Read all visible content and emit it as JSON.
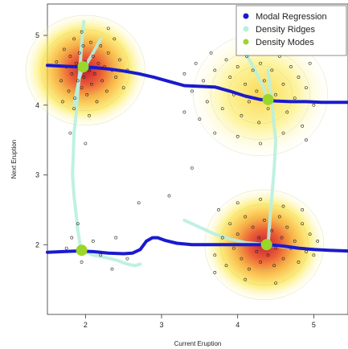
{
  "chart_data": {
    "type": "scatter",
    "title": "",
    "xlabel": "Current Eruption",
    "ylabel": "Next Eruption",
    "xlim": [
      1.5,
      5.45
    ],
    "ylim": [
      1.0,
      5.45
    ],
    "xticks": [
      2,
      3,
      4,
      5
    ],
    "yticks": [
      2,
      3,
      4,
      5
    ],
    "grid": false,
    "legend": {
      "placement": "top-right",
      "entries": [
        {
          "label": "Modal Regression",
          "color": "#1a1acc",
          "marker": "dot"
        },
        {
          "label": "Density Ridges",
          "color": "#b8f0e0",
          "marker": "dot"
        },
        {
          "label": "Density Modes",
          "color": "#9bd62a",
          "marker": "dot"
        }
      ]
    },
    "density_clusters": [
      {
        "x": 2.0,
        "y": 4.5,
        "peak": 1.0
      },
      {
        "x": 4.35,
        "y": 2.0,
        "peak": 1.0
      },
      {
        "x": 4.3,
        "y": 4.15,
        "peak": 0.45
      }
    ],
    "modes": [
      {
        "x": 1.97,
        "y": 4.55
      },
      {
        "x": 4.4,
        "y": 4.08
      },
      {
        "x": 1.95,
        "y": 1.92
      },
      {
        "x": 4.38,
        "y": 2.0
      }
    ],
    "modal_regression": [
      {
        "name": "upper",
        "x": [
          1.5,
          1.7,
          1.9,
          2.1,
          2.3,
          2.5,
          2.7,
          2.9,
          3.1,
          3.3,
          3.5,
          3.7,
          3.9,
          4.1,
          4.3,
          4.5,
          4.7,
          4.9,
          5.1,
          5.3,
          5.45
        ],
        "y": [
          4.57,
          4.56,
          4.55,
          4.54,
          4.52,
          4.49,
          4.45,
          4.4,
          4.34,
          4.28,
          4.27,
          4.26,
          4.2,
          4.13,
          4.08,
          4.06,
          4.05,
          4.05,
          4.04,
          4.04,
          4.04
        ]
      },
      {
        "name": "lower",
        "x": [
          1.5,
          1.7,
          1.9,
          2.1,
          2.3,
          2.5,
          2.62,
          2.72,
          2.8,
          2.88,
          2.95,
          3.05,
          3.2,
          3.4,
          3.6,
          3.8,
          4.0,
          4.2,
          4.4,
          4.6,
          4.8,
          5.0,
          5.2,
          5.45
        ],
        "y": [
          1.89,
          1.9,
          1.91,
          1.9,
          1.88,
          1.87,
          1.88,
          1.93,
          2.05,
          2.1,
          2.1,
          2.06,
          2.02,
          2.0,
          2.0,
          2.0,
          2.0,
          2.0,
          2.0,
          1.98,
          1.95,
          1.93,
          1.92,
          1.91
        ]
      }
    ],
    "density_ridges": [
      {
        "name": "left-vertical",
        "x": [
          1.98,
          1.95,
          1.93,
          1.9,
          1.88,
          1.85,
          1.84,
          1.83,
          1.85,
          1.88,
          1.9,
          1.93,
          1.95
        ],
        "y": [
          5.2,
          4.9,
          4.55,
          4.2,
          3.9,
          3.6,
          3.3,
          3.0,
          2.7,
          2.4,
          2.2,
          2.0,
          1.92
        ]
      },
      {
        "name": "left-branch",
        "x": [
          2.2,
          2.1,
          2.02,
          1.97,
          1.92,
          1.85
        ],
        "y": [
          4.95,
          4.75,
          4.6,
          4.55,
          4.4,
          4.0
        ]
      },
      {
        "name": "lower-left",
        "x": [
          1.95,
          2.1,
          2.25,
          2.4,
          2.55,
          2.65,
          2.72
        ],
        "y": [
          1.92,
          1.85,
          1.82,
          1.78,
          1.72,
          1.7,
          1.72
        ]
      },
      {
        "name": "right-vertical",
        "x": [
          4.4,
          4.42,
          4.45,
          4.47,
          4.5,
          4.48,
          4.45,
          4.42,
          4.4
        ],
        "y": [
          4.5,
          4.3,
          4.08,
          3.8,
          3.5,
          3.1,
          2.7,
          2.3,
          2.0
        ]
      },
      {
        "name": "right-branch",
        "x": [
          4.4,
          4.32,
          4.25,
          4.18,
          4.1
        ],
        "y": [
          4.08,
          4.3,
          4.45,
          4.6,
          4.75
        ]
      },
      {
        "name": "lower-right",
        "x": [
          3.3,
          3.5,
          3.7,
          3.9,
          4.1,
          4.38,
          4.6,
          4.8,
          5.0
        ],
        "y": [
          2.35,
          2.25,
          2.15,
          2.08,
          2.03,
          2.0,
          1.97,
          1.95,
          1.94
        ]
      }
    ],
    "observations": [
      {
        "x": 1.62,
        "y": 4.62
      },
      {
        "x": 1.68,
        "y": 4.35
      },
      {
        "x": 1.72,
        "y": 4.8
      },
      {
        "x": 1.75,
        "y": 4.55
      },
      {
        "x": 1.78,
        "y": 4.2
      },
      {
        "x": 1.8,
        "y": 4.7
      },
      {
        "x": 1.82,
        "y": 4.45
      },
      {
        "x": 1.85,
        "y": 4.95
      },
      {
        "x": 1.86,
        "y": 4.1
      },
      {
        "x": 1.88,
        "y": 4.6
      },
      {
        "x": 1.9,
        "y": 4.35
      },
      {
        "x": 1.92,
        "y": 4.75
      },
      {
        "x": 1.95,
        "y": 4.25
      },
      {
        "x": 1.97,
        "y": 4.85
      },
      {
        "x": 1.98,
        "y": 4.4
      },
      {
        "x": 2.0,
        "y": 4.62
      },
      {
        "x": 2.02,
        "y": 4.15
      },
      {
        "x": 2.05,
        "y": 4.5
      },
      {
        "x": 2.07,
        "y": 4.9
      },
      {
        "x": 2.08,
        "y": 4.3
      },
      {
        "x": 2.1,
        "y": 4.7
      },
      {
        "x": 2.12,
        "y": 4.45
      },
      {
        "x": 2.15,
        "y": 4.05
      },
      {
        "x": 2.17,
        "y": 4.6
      },
      {
        "x": 2.2,
        "y": 4.85
      },
      {
        "x": 2.22,
        "y": 4.35
      },
      {
        "x": 2.25,
        "y": 4.55
      },
      {
        "x": 2.28,
        "y": 4.2
      },
      {
        "x": 2.3,
        "y": 4.75
      },
      {
        "x": 2.35,
        "y": 4.5
      },
      {
        "x": 2.38,
        "y": 4.95
      },
      {
        "x": 2.4,
        "y": 4.4
      },
      {
        "x": 2.45,
        "y": 4.65
      },
      {
        "x": 2.5,
        "y": 4.25
      },
      {
        "x": 2.55,
        "y": 4.5
      },
      {
        "x": 1.95,
        "y": 5.05
      },
      {
        "x": 2.3,
        "y": 5.1
      },
      {
        "x": 1.85,
        "y": 3.95
      },
      {
        "x": 2.05,
        "y": 3.85
      },
      {
        "x": 1.8,
        "y": 3.6
      },
      {
        "x": 2.0,
        "y": 3.45
      },
      {
        "x": 1.7,
        "y": 4.05
      },
      {
        "x": 3.3,
        "y": 4.45
      },
      {
        "x": 3.4,
        "y": 4.2
      },
      {
        "x": 3.45,
        "y": 4.6
      },
      {
        "x": 3.55,
        "y": 4.35
      },
      {
        "x": 3.6,
        "y": 4.05
      },
      {
        "x": 3.65,
        "y": 4.75
      },
      {
        "x": 3.7,
        "y": 4.5
      },
      {
        "x": 3.75,
        "y": 4.25
      },
      {
        "x": 3.8,
        "y": 3.95
      },
      {
        "x": 3.85,
        "y": 4.65
      },
      {
        "x": 3.9,
        "y": 4.4
      },
      {
        "x": 3.95,
        "y": 4.15
      },
      {
        "x": 4.0,
        "y": 4.55
      },
      {
        "x": 4.05,
        "y": 3.85
      },
      {
        "x": 4.1,
        "y": 4.3
      },
      {
        "x": 4.12,
        "y": 4.7
      },
      {
        "x": 4.15,
        "y": 4.05
      },
      {
        "x": 4.2,
        "y": 4.5
      },
      {
        "x": 4.25,
        "y": 4.2
      },
      {
        "x": 4.28,
        "y": 3.75
      },
      {
        "x": 4.3,
        "y": 4.6
      },
      {
        "x": 4.35,
        "y": 4.35
      },
      {
        "x": 4.4,
        "y": 3.95
      },
      {
        "x": 4.45,
        "y": 4.5
      },
      {
        "x": 4.5,
        "y": 4.15
      },
      {
        "x": 4.55,
        "y": 4.7
      },
      {
        "x": 4.6,
        "y": 4.3
      },
      {
        "x": 4.65,
        "y": 3.9
      },
      {
        "x": 4.7,
        "y": 4.55
      },
      {
        "x": 4.75,
        "y": 4.1
      },
      {
        "x": 4.8,
        "y": 4.4
      },
      {
        "x": 4.85,
        "y": 3.7
      },
      {
        "x": 4.9,
        "y": 4.25
      },
      {
        "x": 4.95,
        "y": 4.6
      },
      {
        "x": 5.0,
        "y": 4.0
      },
      {
        "x": 3.5,
        "y": 3.8
      },
      {
        "x": 3.7,
        "y": 3.6
      },
      {
        "x": 4.0,
        "y": 3.55
      },
      {
        "x": 4.3,
        "y": 3.45
      },
      {
        "x": 4.6,
        "y": 3.6
      },
      {
        "x": 4.9,
        "y": 3.5
      },
      {
        "x": 3.3,
        "y": 3.9
      },
      {
        "x": 3.7,
        "y": 1.85
      },
      {
        "x": 3.8,
        "y": 2.1
      },
      {
        "x": 3.85,
        "y": 1.7
      },
      {
        "x": 3.9,
        "y": 2.3
      },
      {
        "x": 3.95,
        "y": 1.95
      },
      {
        "x": 4.0,
        "y": 2.15
      },
      {
        "x": 4.05,
        "y": 1.8
      },
      {
        "x": 4.1,
        "y": 2.4
      },
      {
        "x": 4.12,
        "y": 2.0
      },
      {
        "x": 4.15,
        "y": 1.65
      },
      {
        "x": 4.2,
        "y": 2.25
      },
      {
        "x": 4.25,
        "y": 1.9
      },
      {
        "x": 4.28,
        "y": 2.1
      },
      {
        "x": 4.3,
        "y": 1.75
      },
      {
        "x": 4.35,
        "y": 2.35
      },
      {
        "x": 4.38,
        "y": 2.05
      },
      {
        "x": 4.4,
        "y": 1.85
      },
      {
        "x": 4.45,
        "y": 2.2
      },
      {
        "x": 4.48,
        "y": 1.7
      },
      {
        "x": 4.5,
        "y": 1.95
      },
      {
        "x": 4.55,
        "y": 2.4
      },
      {
        "x": 4.58,
        "y": 2.1
      },
      {
        "x": 4.6,
        "y": 1.8
      },
      {
        "x": 4.65,
        "y": 2.25
      },
      {
        "x": 4.7,
        "y": 1.95
      },
      {
        "x": 4.75,
        "y": 2.05
      },
      {
        "x": 4.8,
        "y": 1.75
      },
      {
        "x": 4.85,
        "y": 2.3
      },
      {
        "x": 4.9,
        "y": 1.9
      },
      {
        "x": 4.95,
        "y": 2.15
      },
      {
        "x": 5.0,
        "y": 1.85
      },
      {
        "x": 5.05,
        "y": 2.05
      },
      {
        "x": 3.75,
        "y": 2.5
      },
      {
        "x": 4.0,
        "y": 2.6
      },
      {
        "x": 4.3,
        "y": 2.65
      },
      {
        "x": 4.6,
        "y": 2.55
      },
      {
        "x": 4.85,
        "y": 2.5
      },
      {
        "x": 4.1,
        "y": 1.5
      },
      {
        "x": 4.5,
        "y": 1.45
      },
      {
        "x": 3.7,
        "y": 1.6
      },
      {
        "x": 1.82,
        "y": 2.1
      },
      {
        "x": 1.95,
        "y": 1.75
      },
      {
        "x": 2.1,
        "y": 2.05
      },
      {
        "x": 2.2,
        "y": 1.85
      },
      {
        "x": 2.35,
        "y": 1.65
      },
      {
        "x": 1.75,
        "y": 1.95
      },
      {
        "x": 2.55,
        "y": 1.8
      },
      {
        "x": 1.9,
        "y": 2.3
      },
      {
        "x": 2.4,
        "y": 2.1
      },
      {
        "x": 3.4,
        "y": 3.1
      },
      {
        "x": 2.7,
        "y": 2.6
      },
      {
        "x": 3.1,
        "y": 2.7
      }
    ]
  }
}
